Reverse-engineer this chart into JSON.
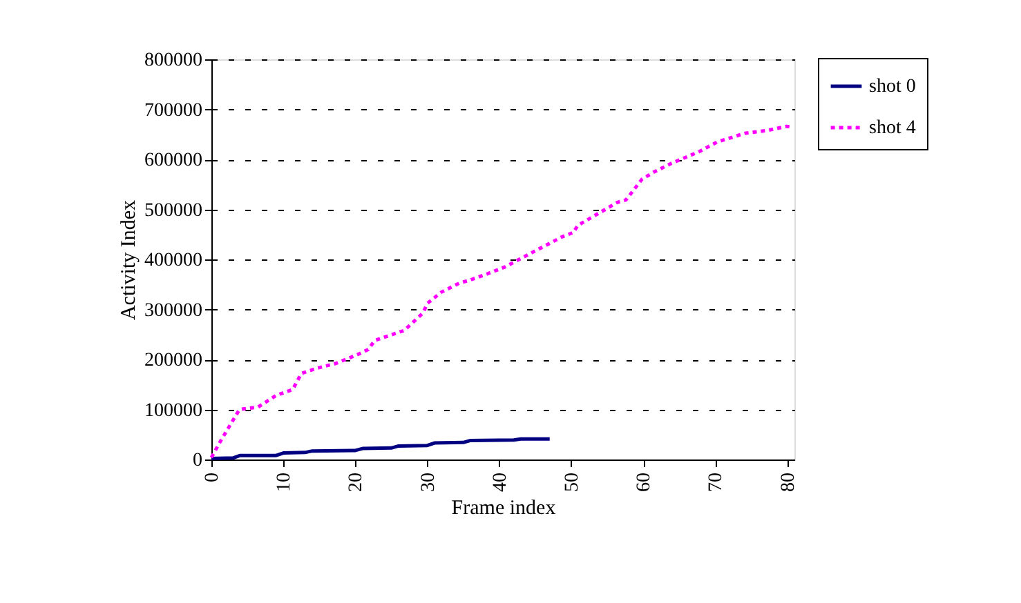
{
  "chart_data": {
    "type": "line",
    "xlabel": "Frame index",
    "ylabel": "Activity Index",
    "xlim": [
      0,
      81
    ],
    "xticks": [
      0,
      10,
      20,
      30,
      40,
      50,
      60,
      70,
      80
    ],
    "ylim": [
      0,
      800000
    ],
    "yticks": [
      0,
      100000,
      200000,
      300000,
      400000,
      500000,
      600000,
      700000,
      800000
    ],
    "grid": "y",
    "legend": "top right",
    "series": [
      {
        "name": "shot 0",
        "color": "#000080",
        "line_style": "solid",
        "x": [
          0,
          3,
          4,
          9,
          10,
          13,
          14,
          20,
          21,
          25,
          26,
          30,
          31,
          35,
          36,
          42,
          43,
          47
        ],
        "values": [
          2000,
          3000,
          8000,
          8000,
          13000,
          14000,
          17000,
          18000,
          22000,
          23000,
          27000,
          28000,
          33000,
          34000,
          38000,
          39000,
          41000,
          41000
        ]
      },
      {
        "name": "shot 4",
        "color": "#ff00ff",
        "line_style": "dashed",
        "x": [
          0,
          1.4,
          3.9,
          6.5,
          9,
          11.3,
          12.5,
          14.8,
          17.3,
          20.5,
          21.8,
          22.7,
          26.8,
          29.4,
          30,
          32,
          34.5,
          35.8,
          38.3,
          40.8,
          44.2,
          48.7,
          50.3,
          50.9,
          56.4,
          57.6,
          59.8,
          61.4,
          63.9,
          67.7,
          70.3,
          74.1,
          77.3,
          79.9,
          80.5
        ],
        "values": [
          4000,
          40000,
          100000,
          105000,
          128000,
          140000,
          172000,
          183000,
          192000,
          211000,
          220000,
          238000,
          258000,
          293000,
          312000,
          335000,
          353000,
          358000,
          371000,
          385000,
          411000,
          445000,
          454000,
          468000,
          514000,
          519000,
          560000,
          574000,
          592000,
          615000,
          635000,
          652000,
          658000,
          666000,
          665000
        ]
      }
    ]
  }
}
